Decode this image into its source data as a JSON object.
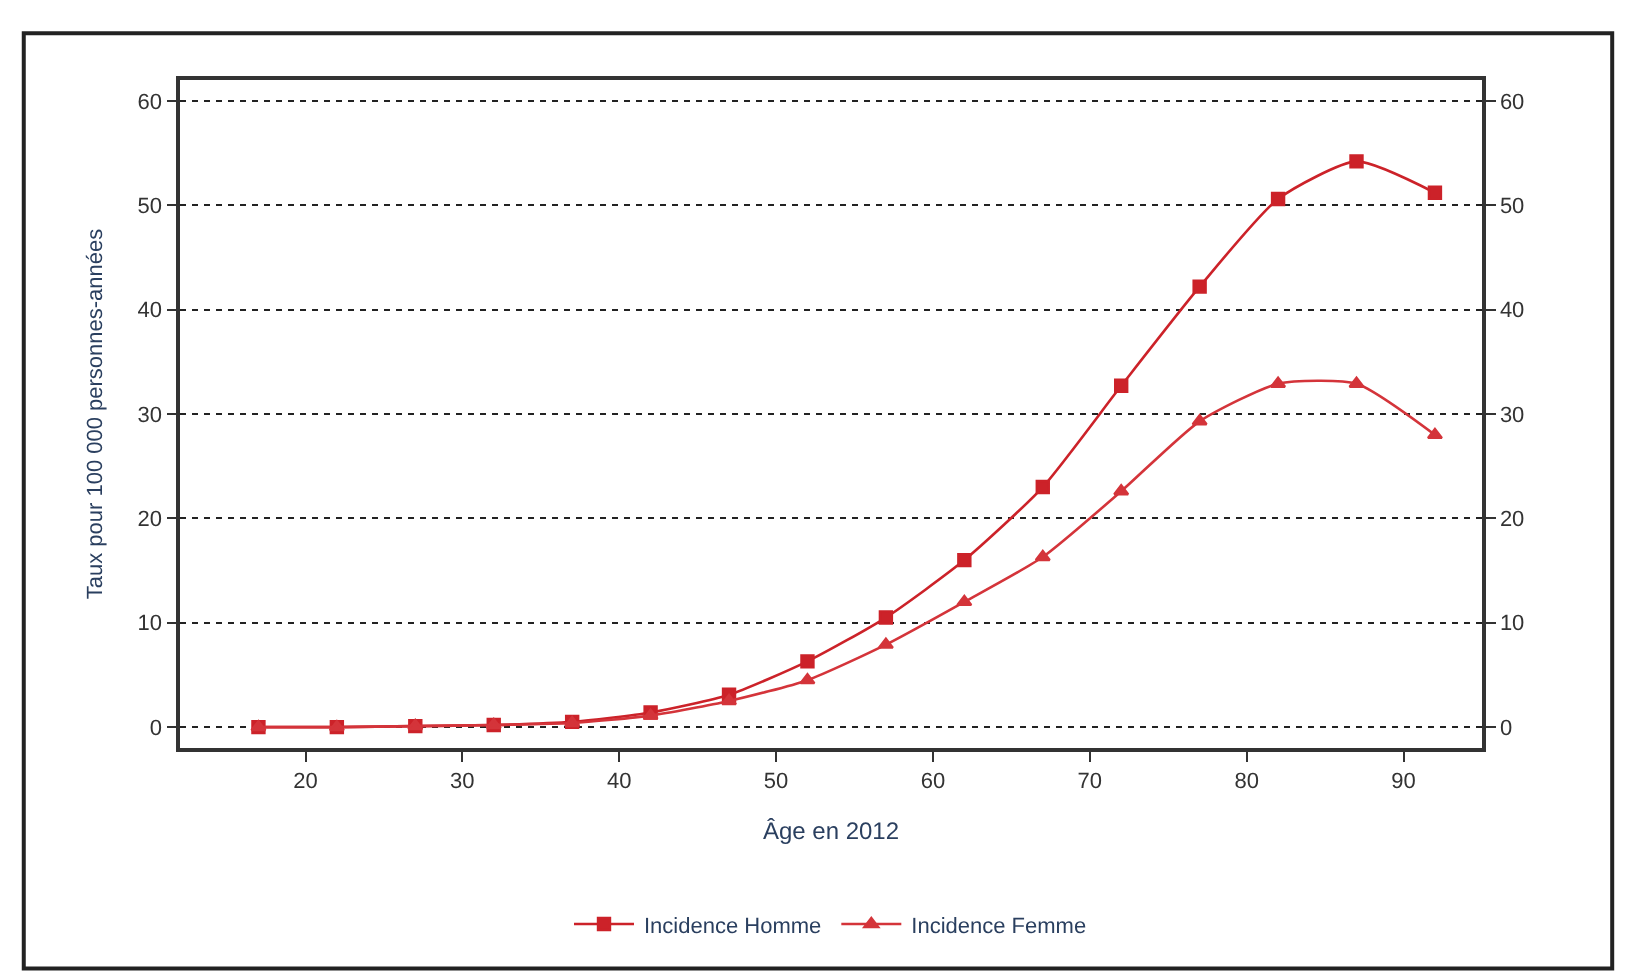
{
  "chart_data": {
    "type": "line",
    "xlabel": "Âge en 2012",
    "ylabel": "Taux pour 100 000 personnes-années",
    "x": [
      17,
      22,
      27,
      32,
      37,
      42,
      47,
      52,
      57,
      62,
      67,
      72,
      77,
      82,
      87,
      92
    ],
    "series": [
      {
        "name": "Incidence Homme",
        "color": "#cc2229",
        "marker": "square",
        "values": [
          0,
          0,
          0.1,
          0.2,
          0.5,
          1.4,
          3.1,
          6.3,
          10.5,
          16,
          23,
          32.7,
          42.2,
          50.6,
          54.2,
          51.2
        ]
      },
      {
        "name": "Incidence Femme",
        "color": "#d4343a",
        "marker": "triangle",
        "values": [
          0,
          0,
          0.1,
          0.2,
          0.4,
          1.1,
          2.5,
          4.5,
          7.9,
          12,
          16.3,
          22.6,
          29.3,
          32.9,
          32.9,
          28
        ]
      }
    ],
    "xlim": [
      12,
      95
    ],
    "xticks": [
      20,
      30,
      40,
      50,
      60,
      70,
      80,
      90
    ],
    "ylim": [
      -2,
      62
    ],
    "yticks": [
      0,
      10,
      20,
      30,
      40,
      50,
      60
    ],
    "y2lim": [
      -2,
      62
    ],
    "y2ticks": [
      0,
      10,
      20,
      30,
      40,
      50,
      60
    ],
    "grid": "y",
    "legend": "bottom",
    "line_style": "solid"
  }
}
